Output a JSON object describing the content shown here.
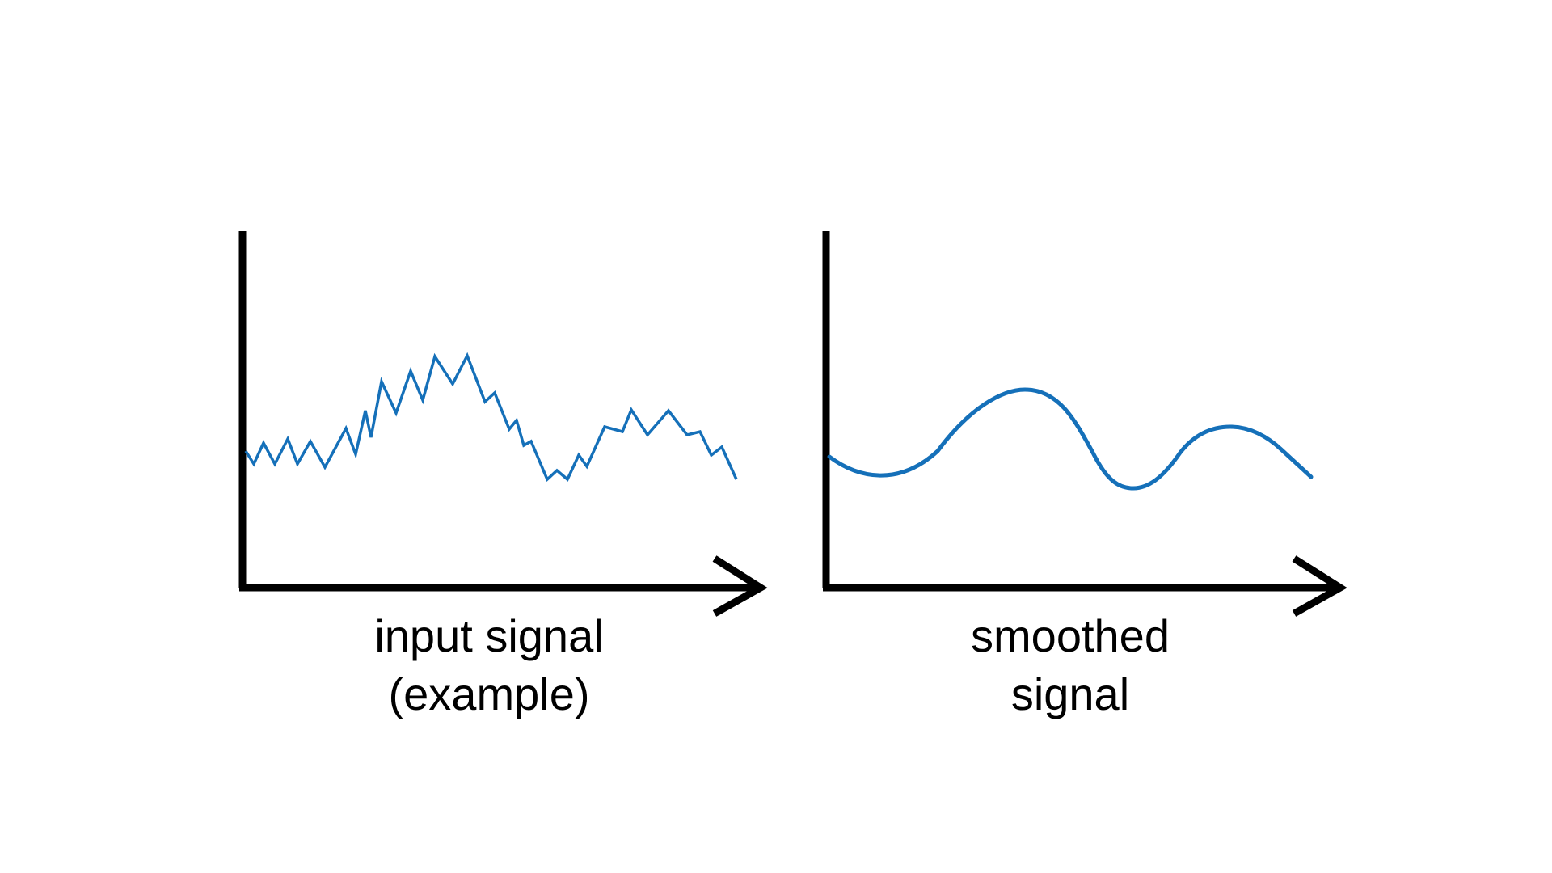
{
  "colors": {
    "axis": "#000000",
    "signal": "#1570b9",
    "background": "#ffffff"
  },
  "panels": [
    {
      "caption_lines": [
        "input signal",
        "(example)"
      ],
      "signal_kind": "noisy"
    },
    {
      "caption_lines": [
        "smoothed",
        "signal"
      ],
      "signal_kind": "smooth"
    }
  ]
}
